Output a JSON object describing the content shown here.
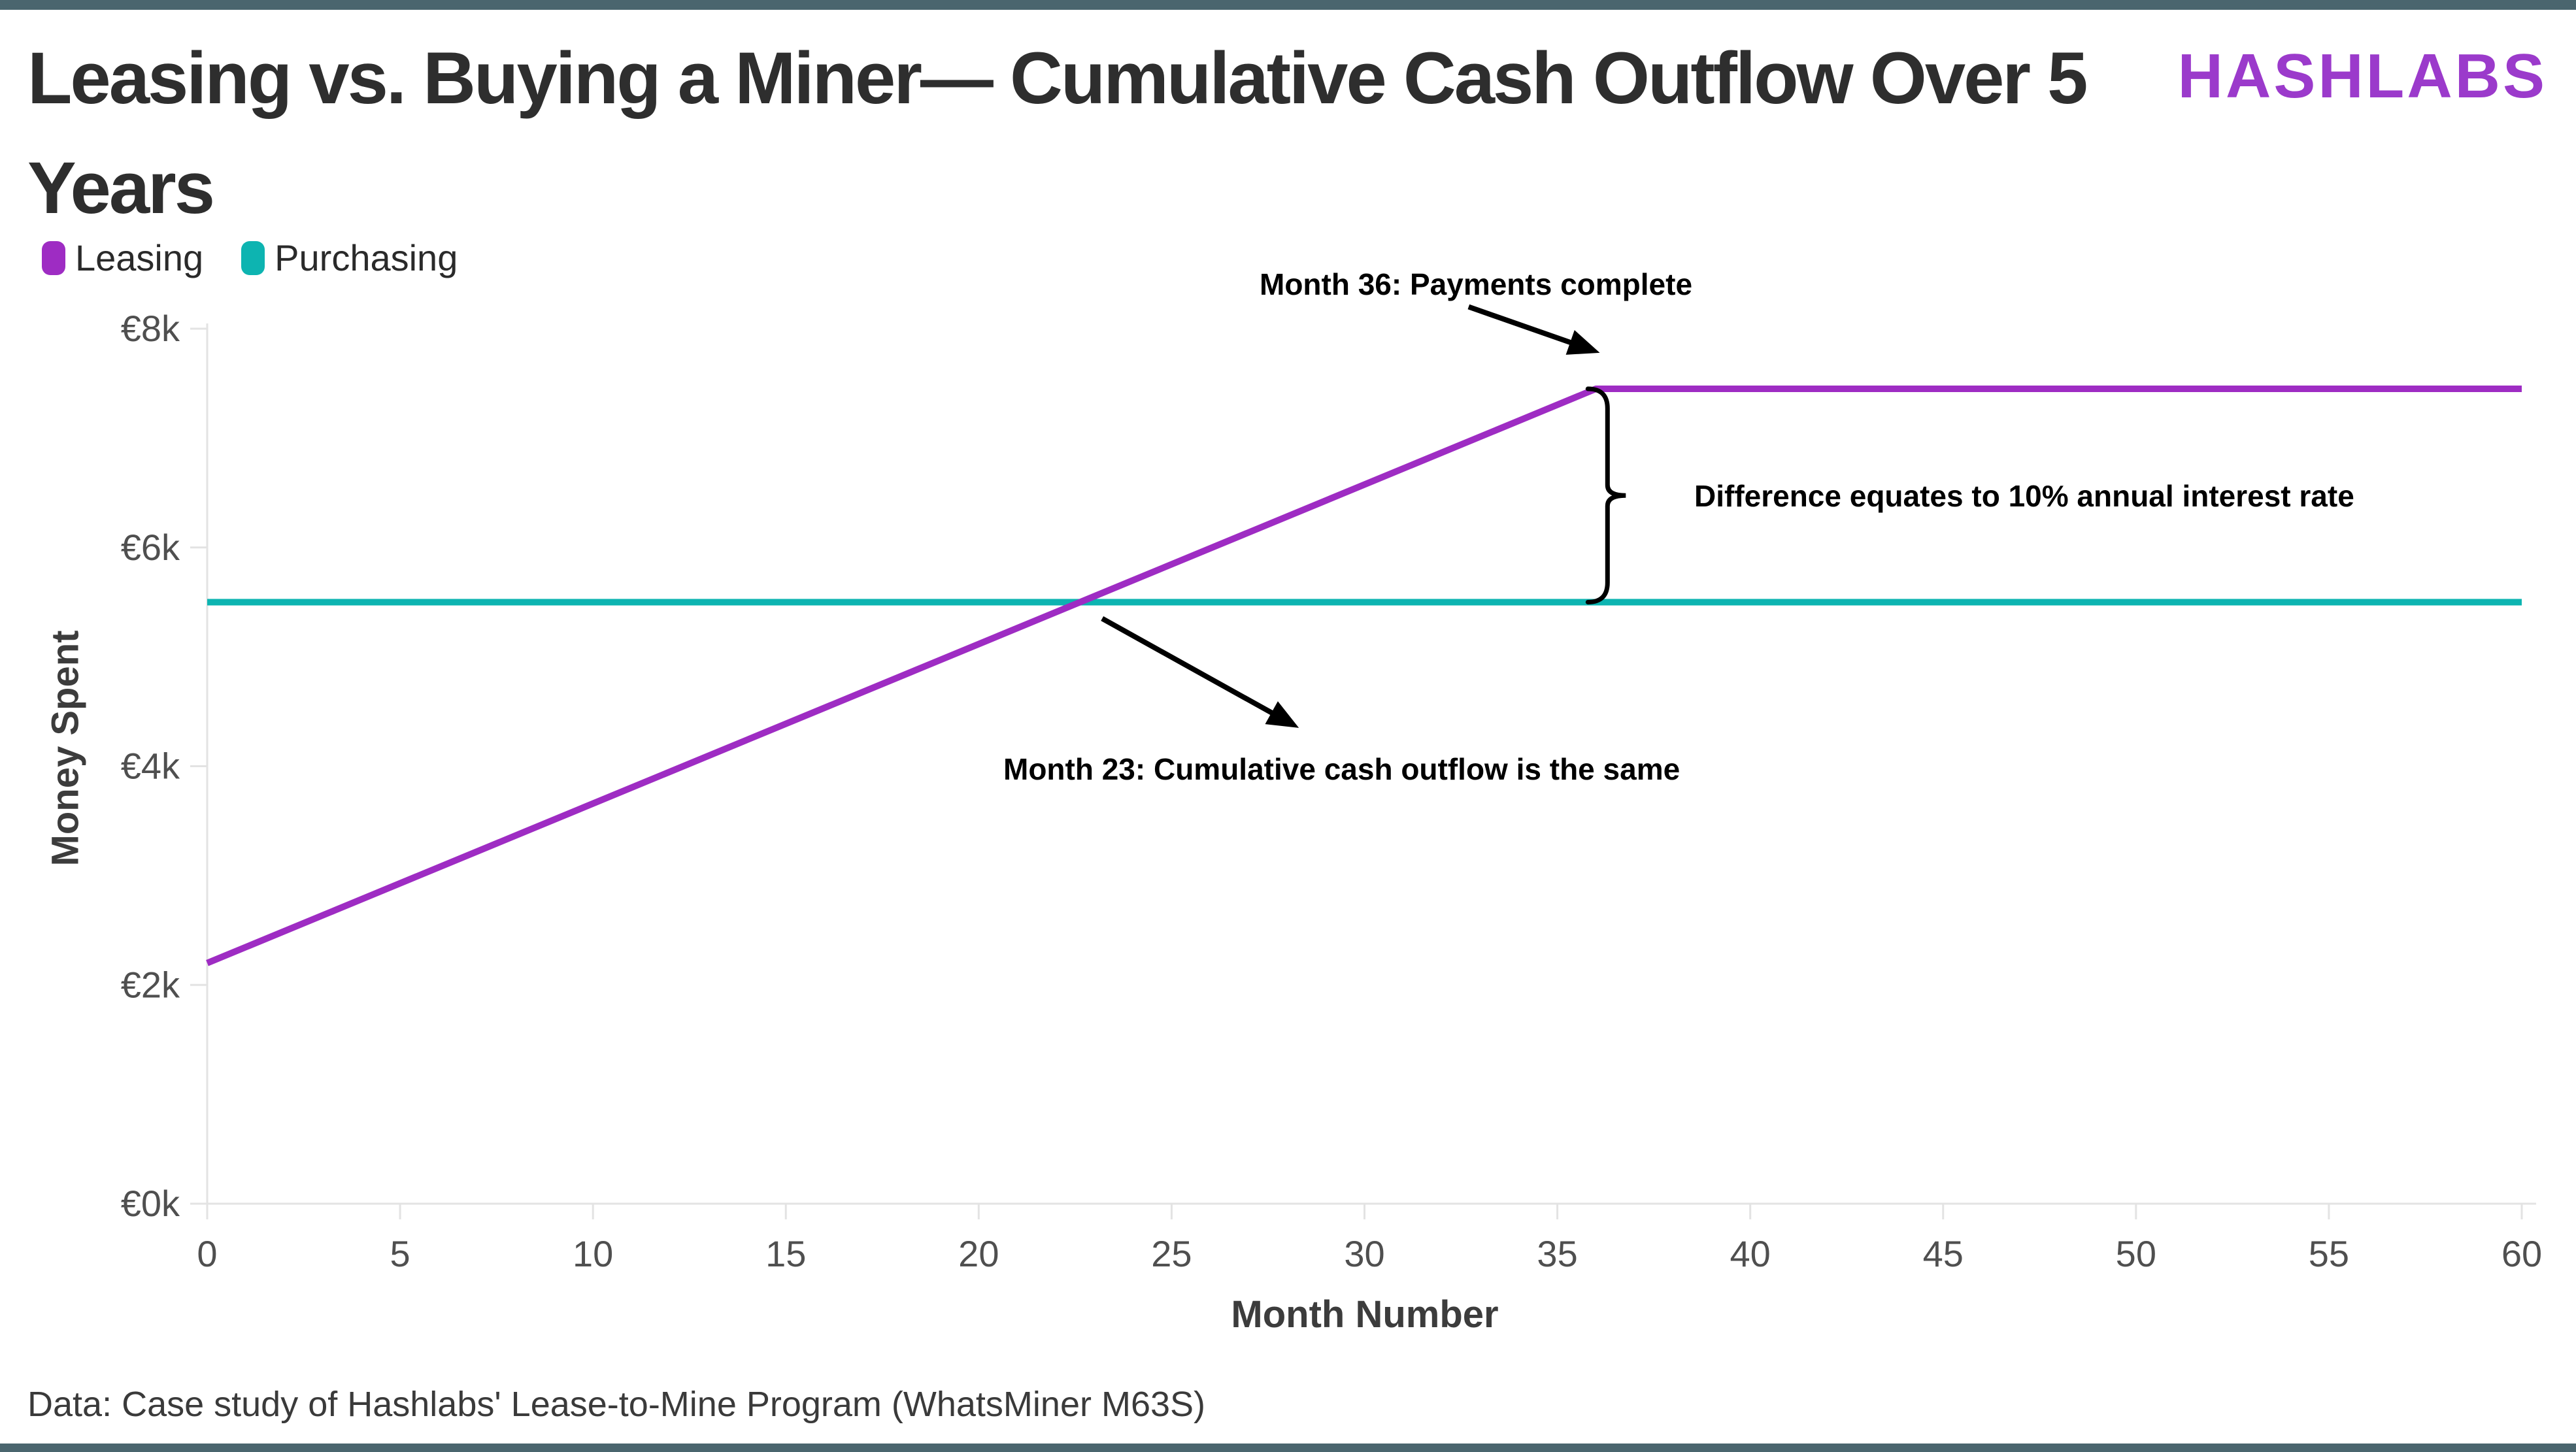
{
  "page": {
    "title_line1": "Leasing vs. Buying a Miner— Cumulative Cash Outflow Over 5",
    "title_line2": "Years",
    "logo": "HASHLABS",
    "source_note": "Data: Case study of Hashlabs' Lease-to-Mine Program (WhatsMiner M63S)",
    "colors": {
      "accent_bar": "#4a656e",
      "logo_purple": "#9b3acb",
      "leasing_purple": "#9e2cc3",
      "purchasing_teal": "#0db4b1",
      "axis_line_gray": "#e3e3e3",
      "tick_text_gray": "#4f4f4f"
    }
  },
  "chart_data": {
    "type": "line",
    "title": "Leasing vs. Buying a Miner— Cumulative Cash Outflow Over 5 Years",
    "xlabel": "Month Number",
    "ylabel": "Money Spent",
    "x_range": [
      0,
      60
    ],
    "y_range_keur": [
      0,
      8
    ],
    "x_ticks": [
      0,
      5,
      10,
      15,
      20,
      25,
      30,
      35,
      40,
      45,
      50,
      55,
      60
    ],
    "y_ticks": [
      {
        "value": 0,
        "label": "€0k"
      },
      {
        "value": 2,
        "label": "€2k"
      },
      {
        "value": 4,
        "label": "€4k"
      },
      {
        "value": 6,
        "label": "€6k"
      },
      {
        "value": 8,
        "label": "€8k"
      }
    ],
    "grid": false,
    "legend_position": "top-left",
    "series": [
      {
        "name": "Leasing",
        "color": "#9e2cc3",
        "points_month_keur": [
          [
            0,
            2.2
          ],
          [
            36,
            7.45
          ],
          [
            60,
            7.45
          ]
        ]
      },
      {
        "name": "Purchasing",
        "color": "#0db4b1",
        "points_month_keur": [
          [
            0,
            5.5
          ],
          [
            60,
            5.5
          ]
        ]
      }
    ],
    "annotations": [
      {
        "text": "Month 36: Payments complete",
        "arrow": {
          "from": [
            32.7,
            8.2
          ],
          "to": [
            36.1,
            7.78
          ]
        }
      },
      {
        "text": "Difference equates to 10% annual interest rate",
        "brace": {
          "month": 36.3,
          "from_value": 7.45,
          "to_value": 5.5
        }
      },
      {
        "text": "Month 23: Cumulative cash outflow is the same",
        "arrow": {
          "from": [
            23.2,
            5.35
          ],
          "to": [
            28.3,
            4.35
          ]
        }
      }
    ]
  }
}
